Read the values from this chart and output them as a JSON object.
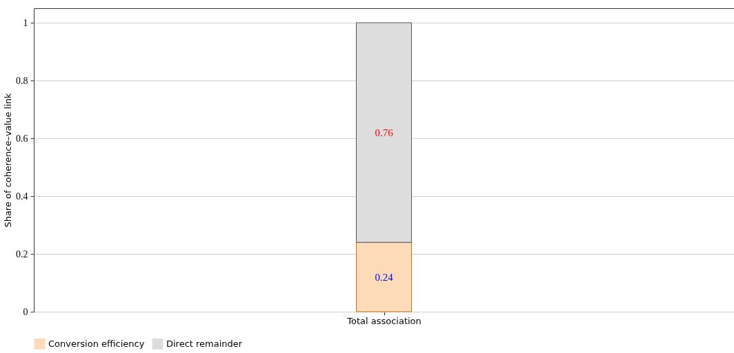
{
  "chart_data": {
    "type": "bar",
    "stacked": true,
    "ylabel": "Share of coherence–value link",
    "categories": [
      "Total association"
    ],
    "series": [
      {
        "name": "Conversion efficiency",
        "color": "#fddbb8",
        "values": [
          0.24
        ]
      },
      {
        "name": "Direct remainder",
        "color": "#dddddd",
        "values": [
          0.76
        ]
      }
    ],
    "ylim": [
      0,
      1.05
    ],
    "yticks": [
      0,
      0.2,
      0.4,
      0.6,
      0.8,
      1
    ],
    "grid": "y",
    "legend": "bottom",
    "data_labels": true
  }
}
